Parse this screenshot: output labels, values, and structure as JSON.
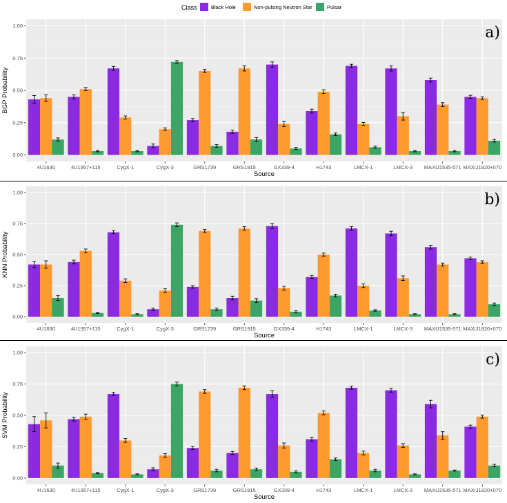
{
  "legend": {
    "title": "Class",
    "entries": [
      {
        "name": "Black Hole",
        "color": "#8a2be2"
      },
      {
        "name": "Non-pulsing Neutron Star",
        "color": "#ff9a2e"
      },
      {
        "name": "Pulsar",
        "color": "#3aa564"
      }
    ]
  },
  "chart_data": [
    {
      "type": "bar",
      "panel_label": "a)",
      "xlabel": "Source",
      "ylabel": "BGP Probability",
      "ylim": [
        0,
        1
      ],
      "yticks": [
        "0.00",
        "0.25",
        "0.50",
        "0.75",
        "1.00"
      ],
      "categories": [
        "4U1630",
        "4U1957+115",
        "CygX-1",
        "CygX-3",
        "GRS1739",
        "GRS1915",
        "GX339-4",
        "H1743",
        "LMCX-1",
        "LMCX-3",
        "MAXIJ1535-571",
        "MAXIJ1820+070"
      ],
      "series": [
        {
          "name": "Black Hole",
          "values": [
            0.43,
            0.45,
            0.67,
            0.07,
            0.27,
            0.18,
            0.7,
            0.34,
            0.69,
            0.67,
            0.58,
            0.45
          ],
          "errors": [
            0.03,
            0.015,
            0.015,
            0.015,
            0.012,
            0.012,
            0.02,
            0.015,
            0.012,
            0.02,
            0.015,
            0.012
          ]
        },
        {
          "name": "Non-pulsing Neutron Star",
          "values": [
            0.44,
            0.51,
            0.29,
            0.2,
            0.65,
            0.67,
            0.24,
            0.49,
            0.24,
            0.3,
            0.39,
            0.44
          ],
          "errors": [
            0.025,
            0.012,
            0.012,
            0.01,
            0.012,
            0.02,
            0.02,
            0.015,
            0.012,
            0.03,
            0.015,
            0.01
          ]
        },
        {
          "name": "Pulsar",
          "values": [
            0.12,
            0.03,
            0.03,
            0.72,
            0.07,
            0.12,
            0.05,
            0.16,
            0.06,
            0.03,
            0.03,
            0.11
          ],
          "errors": [
            0.012,
            0.005,
            0.005,
            0.01,
            0.01,
            0.015,
            0.008,
            0.01,
            0.008,
            0.005,
            0.005,
            0.01
          ]
        }
      ]
    },
    {
      "type": "bar",
      "panel_label": "b)",
      "xlabel": "Source",
      "ylabel": "KNN Probability",
      "ylim": [
        0,
        1
      ],
      "yticks": [
        "0.00",
        "0.25",
        "0.50",
        "0.75",
        "1.00"
      ],
      "categories": [
        "4U1630",
        "4U1957+115",
        "CygX-1",
        "CygX-3",
        "GRS1739",
        "GRS1915",
        "GX339-4",
        "H1743",
        "LMCX-1",
        "LMCX-3",
        "MAXIJ1535-571",
        "MAXIJ1820+070"
      ],
      "series": [
        {
          "name": "Black Hole",
          "values": [
            0.42,
            0.44,
            0.68,
            0.06,
            0.24,
            0.15,
            0.73,
            0.32,
            0.71,
            0.67,
            0.56,
            0.47
          ],
          "errors": [
            0.025,
            0.015,
            0.012,
            0.01,
            0.01,
            0.015,
            0.02,
            0.012,
            0.015,
            0.018,
            0.015,
            0.01
          ]
        },
        {
          "name": "Non-pulsing Neutron Star",
          "values": [
            0.42,
            0.53,
            0.29,
            0.21,
            0.69,
            0.71,
            0.23,
            0.5,
            0.25,
            0.31,
            0.42,
            0.44
          ],
          "errors": [
            0.03,
            0.015,
            0.015,
            0.015,
            0.012,
            0.015,
            0.015,
            0.012,
            0.015,
            0.018,
            0.012,
            0.01
          ]
        },
        {
          "name": "Pulsar",
          "values": [
            0.15,
            0.03,
            0.02,
            0.74,
            0.06,
            0.13,
            0.04,
            0.17,
            0.05,
            0.02,
            0.02,
            0.1
          ],
          "errors": [
            0.02,
            0.004,
            0.004,
            0.015,
            0.01,
            0.015,
            0.008,
            0.01,
            0.006,
            0.004,
            0.004,
            0.01
          ]
        }
      ]
    },
    {
      "type": "bar",
      "panel_label": "c)",
      "xlabel": "Source",
      "ylabel": "SVM Probability",
      "ylim": [
        0,
        1
      ],
      "yticks": [
        "0.00",
        "0.25",
        "0.50",
        "0.75",
        "1.00"
      ],
      "categories": [
        "4U1630",
        "4U1957+115",
        "CygX-1",
        "CygX-3",
        "GRS1739",
        "GRS1915",
        "GX339-4",
        "H1743",
        "LMCX-1",
        "LMCX-3",
        "MAXIJ1535-571",
        "MAXIJ1820+070"
      ],
      "series": [
        {
          "name": "Black Hole",
          "values": [
            0.43,
            0.47,
            0.67,
            0.07,
            0.24,
            0.2,
            0.67,
            0.31,
            0.72,
            0.7,
            0.59,
            0.41
          ],
          "errors": [
            0.06,
            0.015,
            0.012,
            0.012,
            0.012,
            0.012,
            0.025,
            0.015,
            0.012,
            0.015,
            0.03,
            0.012
          ]
        },
        {
          "name": "Non-pulsing Neutron Star",
          "values": [
            0.46,
            0.49,
            0.3,
            0.18,
            0.69,
            0.72,
            0.26,
            0.52,
            0.2,
            0.26,
            0.34,
            0.49
          ],
          "errors": [
            0.06,
            0.02,
            0.015,
            0.015,
            0.015,
            0.015,
            0.02,
            0.015,
            0.015,
            0.015,
            0.03,
            0.012
          ]
        },
        {
          "name": "Pulsar",
          "values": [
            0.1,
            0.04,
            0.03,
            0.75,
            0.06,
            0.07,
            0.05,
            0.15,
            0.06,
            0.03,
            0.06,
            0.1
          ],
          "errors": [
            0.02,
            0.004,
            0.004,
            0.015,
            0.01,
            0.01,
            0.008,
            0.01,
            0.01,
            0.004,
            0.004,
            0.01
          ]
        }
      ]
    }
  ]
}
